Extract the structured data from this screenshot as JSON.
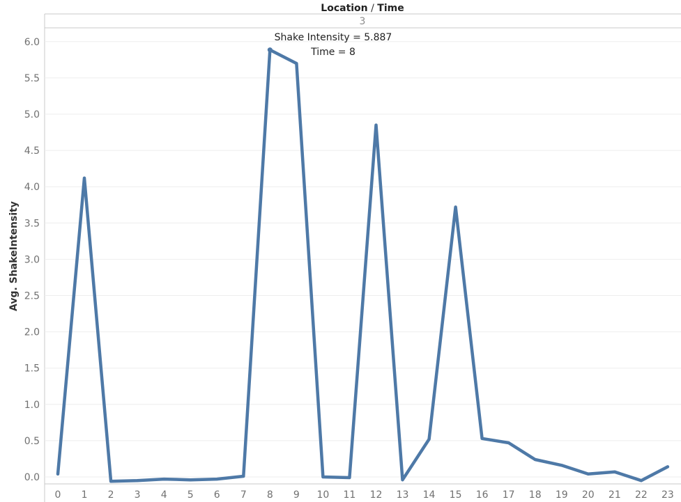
{
  "header": {
    "title_part1": "Location",
    "title_sep": " / ",
    "title_part2": "Time",
    "panel_value": "3"
  },
  "colors": {
    "series": "#4e79a7"
  },
  "chart_data": {
    "type": "line",
    "title": "",
    "xlabel": "",
    "ylabel": "Avg. ShakeIntensity",
    "ylim": [
      -0.05,
      6.2
    ],
    "yticks": [
      "0.0",
      "0.5",
      "1.0",
      "1.5",
      "2.0",
      "2.5",
      "3.0",
      "3.5",
      "4.0",
      "4.5",
      "5.0",
      "5.5",
      "6.0"
    ],
    "x": [
      "0",
      "1",
      "2",
      "3",
      "4",
      "5",
      "6",
      "7",
      "8",
      "9",
      "10",
      "11",
      "12",
      "13",
      "14",
      "15",
      "16",
      "17",
      "18",
      "19",
      "20",
      "21",
      "22",
      "23"
    ],
    "series": [
      {
        "values": [
          0.04,
          4.12,
          -0.06,
          -0.05,
          -0.03,
          -0.04,
          -0.03,
          0.01,
          5.887,
          5.7,
          0.0,
          -0.01,
          4.85,
          -0.04,
          0.52,
          3.72,
          0.53,
          0.47,
          0.24,
          0.16,
          0.04,
          0.07,
          -0.05,
          0.14
        ]
      }
    ],
    "annotation": {
      "line1": "Shake Intensity = 5.887",
      "line2": "Time = 8",
      "x_index": 8,
      "value": 5.887
    },
    "grid": true,
    "legend": "none"
  }
}
